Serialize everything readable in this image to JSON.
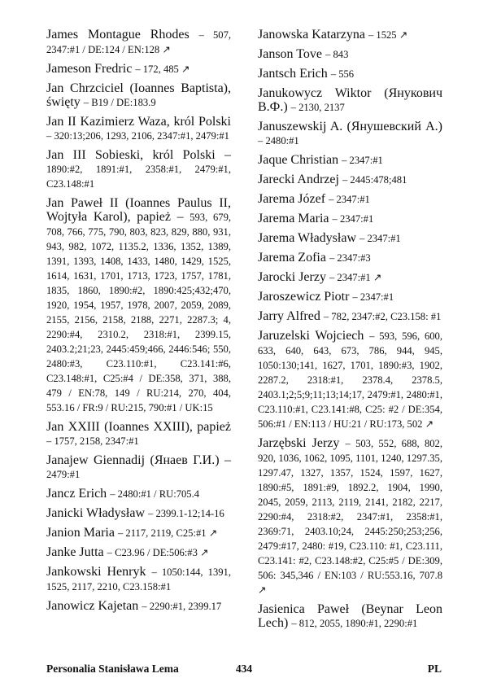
{
  "columns": [
    {
      "entries": [
        {
          "name": "James Montague Rhodes",
          "refs": "– 507, 2347:#1 / DE:124 / EN:128 ↗"
        },
        {
          "name": "Jameson Fredric",
          "refs": "– 172, 485 ↗"
        },
        {
          "name": "Jan Chrzciciel (Ioannes Baptista), święty",
          "refs": "– B19 / DE:183.9"
        },
        {
          "name": "Jan II Kazimierz Waza, król Polski",
          "refs": "– 320:13;206, 1293, 2106, 2347:#1, 2479:#1"
        },
        {
          "name": "Jan III Sobieski, król Polski –",
          "refs": "1890:#2, 1891:#1, 2358:#1, 2479:#1, C23.148:#1"
        },
        {
          "name": "Jan Paweł II (Ioannes Paulus II, Wojtyła Karol), papież –",
          "refs": "593, 679, 708, 766, 775, 790, 803, 823, 829, 880, 931, 943, 982, 1072, 1135.2, 1336, 1352, 1389, 1391, 1393, 1408, 1433, 1480, 1429, 1525, 1614, 1631, 1701, 1713, 1723, 1757, 1781, 1835, 1860, 1890:#2, 1890:425;432;470, 1920, 1954, 1957, 1978, 2007, 2059, 2089, 2155, 2156, 2158, 2188, 2271, 2287.3; 4, 2290:#4, 2310.2, 2318:#1, 2399.15, 2403.2;21;23, 2445:459;466, 2446:546; 550, 2480:#3, C23.110:#1, C23.141:#6, C23.148:#1, C25:#4 / DE:358, 371, 388, 479 / EN:78, 149 / RU:214, 270, 404, 553.16 / FR:9 / RU:215, 790:#1 / UK:15"
        },
        {
          "name": "Jan XXIII (Ioannes XXIII), papież",
          "refs": "– 1757, 2158, 2347:#1"
        },
        {
          "name": "Janajew Giennadij (Янаев Г.И.) –",
          "refs": "2479:#1"
        },
        {
          "name": "Jancz Erich",
          "refs": "– 2480:#1 / RU:705.4"
        },
        {
          "name": "Janicki Władysław",
          "refs": "– 2399.1-12;14-16"
        },
        {
          "name": "Janion Maria",
          "refs": "– 2117, 2119, C25:#1 ↗"
        },
        {
          "name": "Janke Jutta",
          "refs": "– C23.96 / DE:506:#3 ↗"
        },
        {
          "name": "Jankowski Henryk",
          "refs": "– 1050:144, 1391, 1525, 2117, 2210, C23.158:#1"
        },
        {
          "name": "Janowicz Kajetan",
          "refs": "– 2290:#1, 2399.17"
        }
      ]
    },
    {
      "entries": [
        {
          "name": "Janowska Katarzyna",
          "refs": "– 1525 ↗"
        },
        {
          "name": "Janson Tove",
          "refs": "– 843"
        },
        {
          "name": "Jantsch Erich",
          "refs": "– 556"
        },
        {
          "name": "Janukowycz Wiktor (Янукович В.Ф.)",
          "refs": "– 2130, 2137"
        },
        {
          "name": "Januszewskij A. (Янушевский А.)",
          "refs": "– 2480:#1"
        },
        {
          "name": "Jaque Christian",
          "refs": "– 2347:#1"
        },
        {
          "name": "Jarecki Andrzej",
          "refs": "– 2445:478;481"
        },
        {
          "name": "Jarema Józef",
          "refs": "– 2347:#1"
        },
        {
          "name": "Jarema Maria",
          "refs": "– 2347:#1"
        },
        {
          "name": "Jarema Władysław",
          "refs": "– 2347:#1"
        },
        {
          "name": "Jarema Zofia",
          "refs": "– 2347:#3"
        },
        {
          "name": "Jarocki Jerzy",
          "refs": "– 2347:#1 ↗"
        },
        {
          "name": "Jaroszewicz Piotr",
          "refs": "– 2347:#1"
        },
        {
          "name": "Jarry Alfred",
          "refs": "– 782, 2347:#2, C23.158: #1"
        },
        {
          "name": "Jaruzelski Wojciech",
          "refs": "– 593, 596, 600, 633, 640, 643, 673, 786, 944, 945, 1050:130;141, 1627, 1701, 1890:#3, 1902, 2287.2, 2318:#1, 2378.4, 2378.5, 2403.1;2;5;9;11;13;14;17, 2479:#1, 2480:#1, C23.110:#1, C23.141:#8, C25: #2 / DE:354, 506:#1 / EN:113 / HU:21 / RU:173, 502 ↗"
        },
        {
          "name": "Jarzębski Jerzy",
          "refs": "– 503, 552, 688, 802, 920, 1036, 1062, 1095, 1101, 1240, 1297.35, 1297.47, 1327, 1357, 1524, 1597, 1627, 1890:#5, 1891:#9, 1892.2, 1904, 1990, 2045, 2059, 2113, 2119, 2141, 2182, 2217, 2290:#4, 2318:#2, 2347:#1, 2358:#1, 2369:71, 2403.10;24, 2445:250;253;256, 2479:#17, 2480: #19, C23.110: #1, C23.111, C23.141: #2, C23.148:#2, C25:#5 / DE:309, 506: 345,346 / EN:103 / RU:553.16, 707.8 ↗"
        },
        {
          "name": "Jasienica Paweł (Beynar Leon Lech)",
          "refs": "– 812, 2055, 1890:#1, 2290:#1"
        }
      ]
    }
  ],
  "footer": {
    "title": "Personalia Stanisława Lema",
    "page": "434",
    "lang": "PL"
  }
}
